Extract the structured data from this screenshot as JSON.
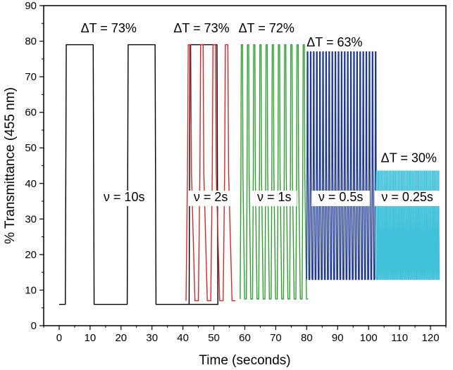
{
  "chart_data": {
    "type": "line",
    "title": "",
    "xlabel": "Time (seconds)",
    "ylabel": "% Transmittance (455 nm)",
    "xlim": [
      -5,
      125
    ],
    "ylim": [
      0,
      90
    ],
    "xticks": [
      0,
      10,
      20,
      30,
      40,
      50,
      60,
      70,
      80,
      90,
      100,
      110,
      120
    ],
    "yticks": [
      0,
      10,
      20,
      30,
      40,
      50,
      60,
      70,
      80,
      90
    ],
    "grid": false,
    "legend": "none",
    "series": [
      {
        "color": "#000000",
        "t_start": 0,
        "t_end": 41,
        "period": 20,
        "low": 6,
        "high": 79,
        "wave": "square"
      },
      {
        "color": "#d62728",
        "t_start": 41,
        "t_end": 58.5,
        "period": 4,
        "low": 7,
        "high": 79,
        "wave": "pulse"
      },
      {
        "color": "#2ca02c",
        "t_start": 58.5,
        "t_end": 80,
        "period": 2,
        "low": 7.5,
        "high": 79,
        "wave": "pulse"
      },
      {
        "color": "#1f3a93",
        "t_start": 80,
        "t_end": 102.5,
        "period": 1,
        "low": 13,
        "high": 77,
        "wave": "pulse"
      },
      {
        "color": "#3fc1d9",
        "t_start": 102.5,
        "t_end": 123,
        "period": 0.5,
        "low": 13,
        "high": 43.5,
        "wave": "pulse"
      }
    ],
    "annotations": [
      {
        "text": "ΔT = 73%",
        "x": 16,
        "y": 82.5
      },
      {
        "text": "ΔT = 73%",
        "x": 46,
        "y": 82.5
      },
      {
        "text": "ΔT = 72%",
        "x": 67,
        "y": 82.5
      },
      {
        "text": "ΔT = 63%",
        "x": 89,
        "y": 78.5
      },
      {
        "text": "ΔT = 30%",
        "x": 113,
        "y": 46
      },
      {
        "text": "ν = 10s",
        "x": 21,
        "y": 35
      },
      {
        "text": "ν = 2s",
        "x": 49,
        "y": 35
      },
      {
        "text": "ν = 1s",
        "x": 69.5,
        "y": 35
      },
      {
        "text": "ν = 0.5s",
        "x": 91,
        "y": 35
      },
      {
        "text": "ν = 0.25s",
        "x": 112.5,
        "y": 35
      }
    ]
  }
}
